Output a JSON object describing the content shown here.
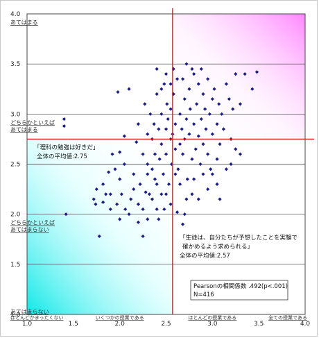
{
  "chart_data": {
    "type": "scatter",
    "xlim": [
      1.0,
      4.0
    ],
    "ylim": [
      1.0,
      4.0
    ],
    "x_ticks": [
      "1.0",
      "1.5",
      "2.0",
      "2.5",
      "3.0",
      "3.5",
      "4.0"
    ],
    "y_ticks": [
      "1.0",
      "1.5",
      "2.0",
      "2.5",
      "3.0",
      "3.5",
      "4.0"
    ],
    "x_category_labels": [
      {
        "x": 1.0,
        "text": "ほとんどかまったくない"
      },
      {
        "x": 2.0,
        "text": "いくつかの授業である"
      },
      {
        "x": 3.0,
        "text": "ほとんどの授業である"
      },
      {
        "x": 4.0,
        "text": "全ての授業である"
      }
    ],
    "y_category_labels": [
      {
        "y": 4.0,
        "lines": [
          "あてはまる"
        ]
      },
      {
        "y": 3.0,
        "lines": [
          "どちらかといえば",
          "あてはまる"
        ]
      },
      {
        "y": 2.0,
        "lines": [
          "どちらかといえば",
          "あてはまらない"
        ]
      },
      {
        "y": 1.0,
        "lines": [
          "あてはまらない"
        ]
      }
    ],
    "grid": "horizontal",
    "mean_x": 2.57,
    "mean_y": 2.75,
    "annotations": {
      "y_mean": [
        "「理科の勉強は好きだ」",
        "全体の平均値:2.75"
      ],
      "x_mean": [
        "「生徒は、自分たちが予想したことを実験で",
        "確かめるよう求められる」",
        "全体の平均値:2.57"
      ],
      "stats": [
        "Pearsonの相関係数 .492(p<.001)",
        "N=416"
      ]
    },
    "marker_color": "#1c1c8c",
    "mean_line_color": "#e02020",
    "n": 416,
    "points": [
      [
        1.4,
        2.95
      ],
      [
        1.4,
        2.88
      ],
      [
        1.42,
        2.0
      ],
      [
        1.72,
        2.15
      ],
      [
        1.75,
        2.25
      ],
      [
        1.74,
        2.1
      ],
      [
        1.78,
        1.78
      ],
      [
        1.82,
        2.3
      ],
      [
        1.85,
        2.2
      ],
      [
        1.88,
        2.42
      ],
      [
        1.9,
        2.05
      ],
      [
        1.92,
        2.6
      ],
      [
        1.95,
        2.45
      ],
      [
        1.97,
        2.1
      ],
      [
        2.0,
        2.35
      ],
      [
        2.0,
        2.62
      ],
      [
        2.02,
        2.2
      ],
      [
        2.05,
        2.78
      ],
      [
        2.05,
        2.5
      ],
      [
        2.06,
        2.05
      ],
      [
        1.98,
        3.22
      ],
      [
        2.1,
        3.25
      ],
      [
        2.15,
        2.4
      ],
      [
        2.18,
        2.72
      ],
      [
        2.2,
        2.9
      ],
      [
        2.22,
        2.3
      ],
      [
        2.25,
        2.6
      ],
      [
        2.27,
        3.1
      ],
      [
        2.3,
        2.8
      ],
      [
        2.3,
        2.5
      ],
      [
        2.32,
        2.2
      ],
      [
        2.33,
        3.0
      ],
      [
        2.35,
        2.75
      ],
      [
        2.35,
        2.45
      ],
      [
        2.37,
        2.9
      ],
      [
        2.38,
        2.6
      ],
      [
        2.4,
        3.2
      ],
      [
        2.4,
        2.3
      ],
      [
        2.42,
        2.85
      ],
      [
        2.43,
        2.55
      ],
      [
        2.45,
        3.0
      ],
      [
        2.45,
        2.7
      ],
      [
        2.47,
        2.4
      ],
      [
        2.48,
        3.3
      ],
      [
        2.5,
        2.85
      ],
      [
        2.5,
        2.6
      ],
      [
        2.51,
        3.1
      ],
      [
        2.52,
        2.95
      ],
      [
        2.53,
        2.3
      ],
      [
        2.55,
        2.75
      ],
      [
        2.55,
        3.05
      ],
      [
        2.56,
        2.5
      ],
      [
        2.57,
        2.8
      ],
      [
        2.58,
        3.2
      ],
      [
        2.6,
        2.65
      ],
      [
        2.6,
        2.9
      ],
      [
        2.62,
        3.35
      ],
      [
        2.63,
        2.45
      ],
      [
        2.65,
        3.0
      ],
      [
        2.65,
        2.7
      ],
      [
        2.67,
        2.85
      ],
      [
        2.68,
        2.6
      ],
      [
        2.7,
        3.15
      ],
      [
        2.7,
        2.75
      ],
      [
        2.72,
        2.95
      ],
      [
        2.73,
        2.35
      ],
      [
        2.75,
        3.25
      ],
      [
        2.75,
        2.8
      ],
      [
        2.76,
        3.05
      ],
      [
        2.78,
        2.55
      ],
      [
        2.8,
        3.4
      ],
      [
        2.8,
        2.9
      ],
      [
        2.82,
        2.65
      ],
      [
        2.83,
        3.1
      ],
      [
        2.85,
        2.78
      ],
      [
        2.85,
        3.3
      ],
      [
        2.87,
        2.5
      ],
      [
        2.88,
        2.95
      ],
      [
        2.9,
        3.2
      ],
      [
        2.9,
        2.7
      ],
      [
        2.92,
        3.05
      ],
      [
        2.93,
        2.85
      ],
      [
        2.95,
        2.6
      ],
      [
        2.95,
        3.35
      ],
      [
        2.97,
        3.0
      ],
      [
        2.98,
        2.45
      ],
      [
        3.0,
        2.8
      ],
      [
        3.0,
        3.15
      ],
      [
        3.02,
        3.25
      ],
      [
        3.05,
        2.9
      ],
      [
        3.05,
        2.55
      ],
      [
        3.07,
        3.1
      ],
      [
        3.08,
        2.7
      ],
      [
        3.1,
        3.0
      ],
      [
        3.12,
        2.85
      ],
      [
        3.15,
        3.3
      ],
      [
        3.18,
        3.15
      ],
      [
        3.2,
        2.75
      ],
      [
        3.22,
        3.05
      ],
      [
        3.25,
        3.4
      ],
      [
        3.3,
        3.1
      ],
      [
        3.35,
        3.4
      ],
      [
        3.43,
        3.25
      ],
      [
        3.48,
        3.42
      ],
      [
        2.62,
        2.02
      ],
      [
        2.68,
        1.9
      ],
      [
        2.72,
        2.15
      ],
      [
        2.7,
        2.0
      ],
      [
        2.78,
        2.2
      ],
      [
        2.8,
        2.35
      ],
      [
        2.85,
        2.15
      ],
      [
        2.9,
        2.4
      ],
      [
        2.95,
        2.25
      ],
      [
        3.0,
        2.4
      ],
      [
        3.05,
        2.3
      ],
      [
        3.08,
        2.15
      ],
      [
        2.25,
        2.05
      ],
      [
        2.3,
        1.95
      ],
      [
        2.35,
        2.15
      ],
      [
        2.25,
        1.78
      ],
      [
        2.2,
        1.92
      ],
      [
        2.2,
        2.1
      ],
      [
        2.28,
        2.22
      ],
      [
        2.4,
        2.05
      ],
      [
        2.42,
        1.95
      ],
      [
        2.15,
        2.25
      ],
      [
        2.1,
        2.0
      ],
      [
        2.12,
        2.15
      ],
      [
        1.9,
        2.2
      ],
      [
        1.82,
        2.12
      ],
      [
        2.0,
        1.95
      ],
      [
        2.4,
        3.45
      ],
      [
        2.45,
        3.25
      ],
      [
        2.5,
        3.4
      ],
      [
        2.55,
        3.3
      ],
      [
        2.58,
        3.45
      ],
      [
        2.68,
        3.35
      ],
      [
        2.72,
        3.5
      ],
      [
        2.88,
        3.45
      ],
      [
        2.78,
        3.45
      ],
      [
        3.25,
        2.65
      ],
      [
        3.2,
        2.5
      ],
      [
        3.3,
        2.6
      ],
      [
        3.15,
        2.45
      ],
      [
        2.6,
        2.4
      ],
      [
        2.65,
        2.3
      ],
      [
        2.5,
        2.2
      ],
      [
        2.55,
        2.1
      ],
      [
        2.45,
        2.2
      ],
      [
        2.48,
        2.05
      ],
      [
        2.38,
        2.35
      ],
      [
        2.3,
        2.4
      ]
    ]
  }
}
